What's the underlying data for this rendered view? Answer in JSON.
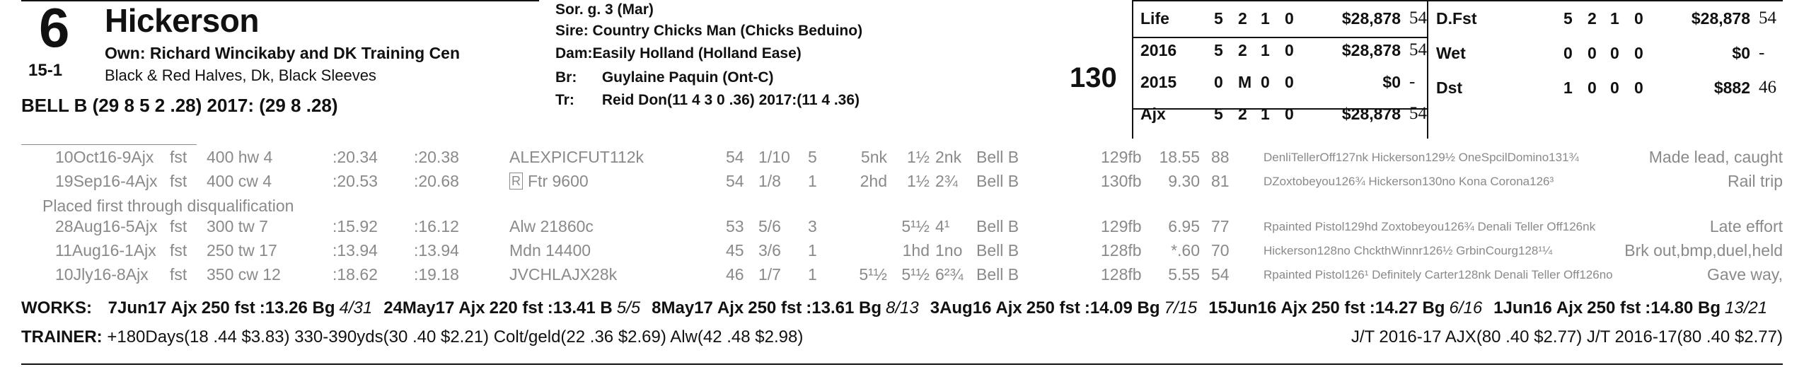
{
  "header": {
    "program_number": "6",
    "odds": "15-1",
    "horse_name": "Hickerson",
    "owner": "Own: Richard Wincikaby and DK Training Cen",
    "silks": "Black & Red Halves, Dk, Black Sleeves",
    "jockey": "BELL B (29 8 5 2 .28) 2017: (29 8 .28)",
    "weight": "130"
  },
  "pedigree": {
    "sex_age": "Sor. g. 3 (Mar)",
    "sire_label": "Sire:",
    "sire": "Country Chicks Man (Chicks Beduino)",
    "dam_label": "Dam:",
    "dam": "Easily Holland (Holland Ease)",
    "breeder_label": "Br:",
    "breeder": "Guylaine Paquin (Ont-C)",
    "trainer_label": "Tr:",
    "trainer": "Reid Don(11 4 3 0 .36) 2017:(11 4 .36)"
  },
  "stats_left": [
    {
      "label": "Life",
      "starts": "5",
      "wins": "2",
      "places": "1",
      "shows": "0",
      "earnings": "$28,878",
      "speed": "54"
    },
    {
      "label": "2016",
      "starts": "5",
      "wins": "2",
      "places": "1",
      "shows": "0",
      "earnings": "$28,878",
      "speed": "54"
    },
    {
      "label": "2015",
      "starts": "0",
      "wins": "M",
      "places": "0",
      "shows": "0",
      "earnings": "$0",
      "speed": "-"
    },
    {
      "label": "Ajx",
      "starts": "5",
      "wins": "2",
      "places": "1",
      "shows": "0",
      "earnings": "$28,878",
      "speed": "54"
    }
  ],
  "stats_right": [
    {
      "label": "D.Fst",
      "starts": "5",
      "wins": "2",
      "places": "1",
      "shows": "0",
      "earnings": "$28,878",
      "speed": "54"
    },
    {
      "label": "Wet",
      "starts": "0",
      "wins": "0",
      "places": "0",
      "shows": "0",
      "earnings": "$0",
      "speed": "-"
    },
    {
      "label": "Dst",
      "starts": "1",
      "wins": "0",
      "places": "0",
      "shows": "0",
      "earnings": "$882",
      "speed": "46"
    }
  ],
  "past_performances": [
    {
      "date": "10Oct16-9Ajx",
      "cond": "fst",
      "dist": "400 hw 4",
      "frac": ":20.34",
      "final": ":20.38",
      "race": "ALEXPICFUT112k",
      "race_box": "",
      "spd": "54",
      "pp": "1/10",
      "st": "5",
      "p1": "5nk",
      "p2": "1½",
      "fin": "2nk",
      "jockey": "Bell B",
      "wt": "129fb",
      "odds": "18.55",
      "fig": "88",
      "comment": "DenliTellerOff127nk Hickerson129½ OneSpcilDomino131¾",
      "trip": "Made lead, caught"
    },
    {
      "date": "19Sep16-4Ajx",
      "cond": "fst",
      "dist": "400 cw 4",
      "frac": ":20.53",
      "final": ":20.68",
      "race": "Ftr 9600",
      "race_box": "R",
      "spd": "54",
      "pp": "1/8",
      "st": "1",
      "p1": "2hd",
      "p2": "1½",
      "fin": "2¾",
      "jockey": "Bell B",
      "wt": "130fb",
      "odds": "9.30",
      "fig": "81",
      "comment": "DZoxtobeyou126¾ Hickerson130no Kona Corona126³",
      "trip": "Rail trip"
    },
    {
      "date": "28Aug16-5Ajx",
      "cond": "fst",
      "dist": "300 tw 7",
      "frac": ":15.92",
      "final": ":16.12",
      "race": "Alw 21860c",
      "race_box": "",
      "spd": "53",
      "pp": "5/6",
      "st": "3",
      "p1": "",
      "p2": "5¹½",
      "fin": "4¹",
      "jockey": "Bell B",
      "wt": "129fb",
      "odds": "6.95",
      "fig": "77",
      "comment": "Rpainted Pistol129hd Zoxtobeyou126¾ Denali Teller Off126nk",
      "trip": "Late effort"
    },
    {
      "date": "11Aug16-1Ajx",
      "cond": "fst",
      "dist": "250 tw 17",
      "frac": ":13.94",
      "final": ":13.94",
      "race": "Mdn 14400",
      "race_box": "",
      "spd": "45",
      "pp": "3/6",
      "st": "1",
      "p1": "",
      "p2": "1hd",
      "fin": "1no",
      "jockey": "Bell B",
      "wt": "128fb",
      "odds": "*.60",
      "fig": "70",
      "comment": "Hickerson128no ChckthWinnr126½ GrbinCourg128¹¼",
      "trip": "Brk out,bmp,duel,held"
    },
    {
      "date": "10Jly16-8Ajx",
      "cond": "fst",
      "dist": "350 cw 12",
      "frac": ":18.62",
      "final": ":19.18",
      "race": "JVCHLAJX28k",
      "race_box": "",
      "spd": "46",
      "pp": "1/7",
      "st": "1",
      "p1": "5¹½",
      "p2": "5¹½",
      "fin": "6²¾",
      "jockey": "Bell B",
      "wt": "128fb",
      "odds": "5.55",
      "fig": "54",
      "comment": "Rpainted Pistol126¹ Definitely Carter128nk Denali Teller Off126no",
      "trip": "Gave way,"
    }
  ],
  "dq_note": "Placed first through disqualification",
  "works": {
    "label": "WORKS:",
    "items": [
      {
        "date": "7Jun17",
        "track": "Ajx",
        "dist": "250 fst",
        "time": ":13.26 Bg",
        "rank": "4/31"
      },
      {
        "date": "24May17",
        "track": "Ajx",
        "dist": "220 fst",
        "time": ":13.41 B",
        "rank": "5/5"
      },
      {
        "date": "8May17",
        "track": "Ajx",
        "dist": "250 fst",
        "time": ":13.61 Bg",
        "rank": "8/13"
      },
      {
        "date": "3Aug16",
        "track": "Ajx",
        "dist": "250 fst",
        "time": ":14.09 Bg",
        "rank": "7/15"
      },
      {
        "date": "15Jun16",
        "track": "Ajx",
        "dist": "250 fst",
        "time": ":14.27 Bg",
        "rank": "6/16"
      },
      {
        "date": "1Jun16",
        "track": "Ajx",
        "dist": "250 fst",
        "time": ":14.80 Bg",
        "rank": "13/21"
      }
    ]
  },
  "trainer_stats": {
    "label": "TRAINER:",
    "text": "+180Days(18 .44 $3.83) 330-390yds(30 .40 $2.21) Colt/geld(22 .36 $2.69) Alw(42 .48 $2.98)",
    "jt": "J/T 2016-17 AJX(80 .40 $2.77) J/T 2016-17(80 .40 $2.77)"
  }
}
